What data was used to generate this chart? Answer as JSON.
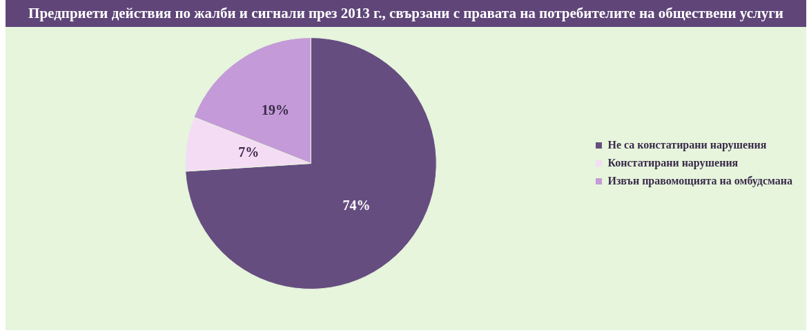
{
  "chart_data": {
    "type": "pie",
    "title": "Предприети действия по жалби и сигнали през 2013 г., свързани с правата на потребителите на обществени услуги",
    "categories": [
      "Не са констатирани нарушения",
      "Констатирани нарушения",
      "Извън правомощията на омбудсмана"
    ],
    "values": [
      74,
      7,
      19
    ],
    "colors": [
      "#664d80",
      "#f5dcf5",
      "#c49ad8"
    ],
    "value_labels": [
      "74%",
      "7%",
      "19%"
    ],
    "legend": "right"
  }
}
